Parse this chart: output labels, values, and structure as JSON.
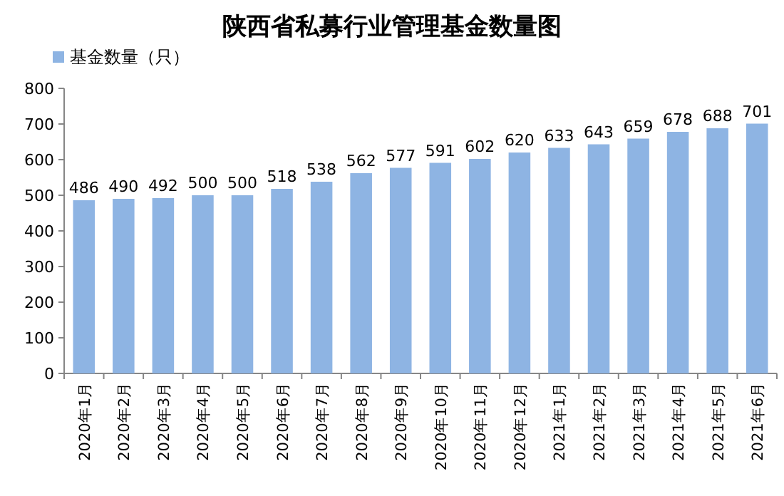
{
  "chart_data": {
    "type": "bar",
    "title": "陕西省私募行业管理基金数量图",
    "categories": [
      "2020年1月",
      "2020年2月",
      "2020年3月",
      "2020年4月",
      "2020年5月",
      "2020年6月",
      "2020年7月",
      "2020年8月",
      "2020年9月",
      "2020年10月",
      "2020年11月",
      "2020年12月",
      "2021年1月",
      "2021年2月",
      "2021年3月",
      "2021年4月",
      "2021年5月",
      "2021年6月"
    ],
    "series": [
      {
        "name": "基金数量（只）",
        "color": "#8eb4e3",
        "values": [
          486,
          490,
          492,
          500,
          500,
          518,
          538,
          562,
          577,
          591,
          602,
          620,
          633,
          643,
          659,
          678,
          688,
          701
        ]
      }
    ],
    "ylim": [
      0,
      800
    ],
    "yticks": [
      0,
      100,
      200,
      300,
      400,
      500,
      600,
      700,
      800
    ],
    "data_labels": true,
    "legend": "top left"
  }
}
